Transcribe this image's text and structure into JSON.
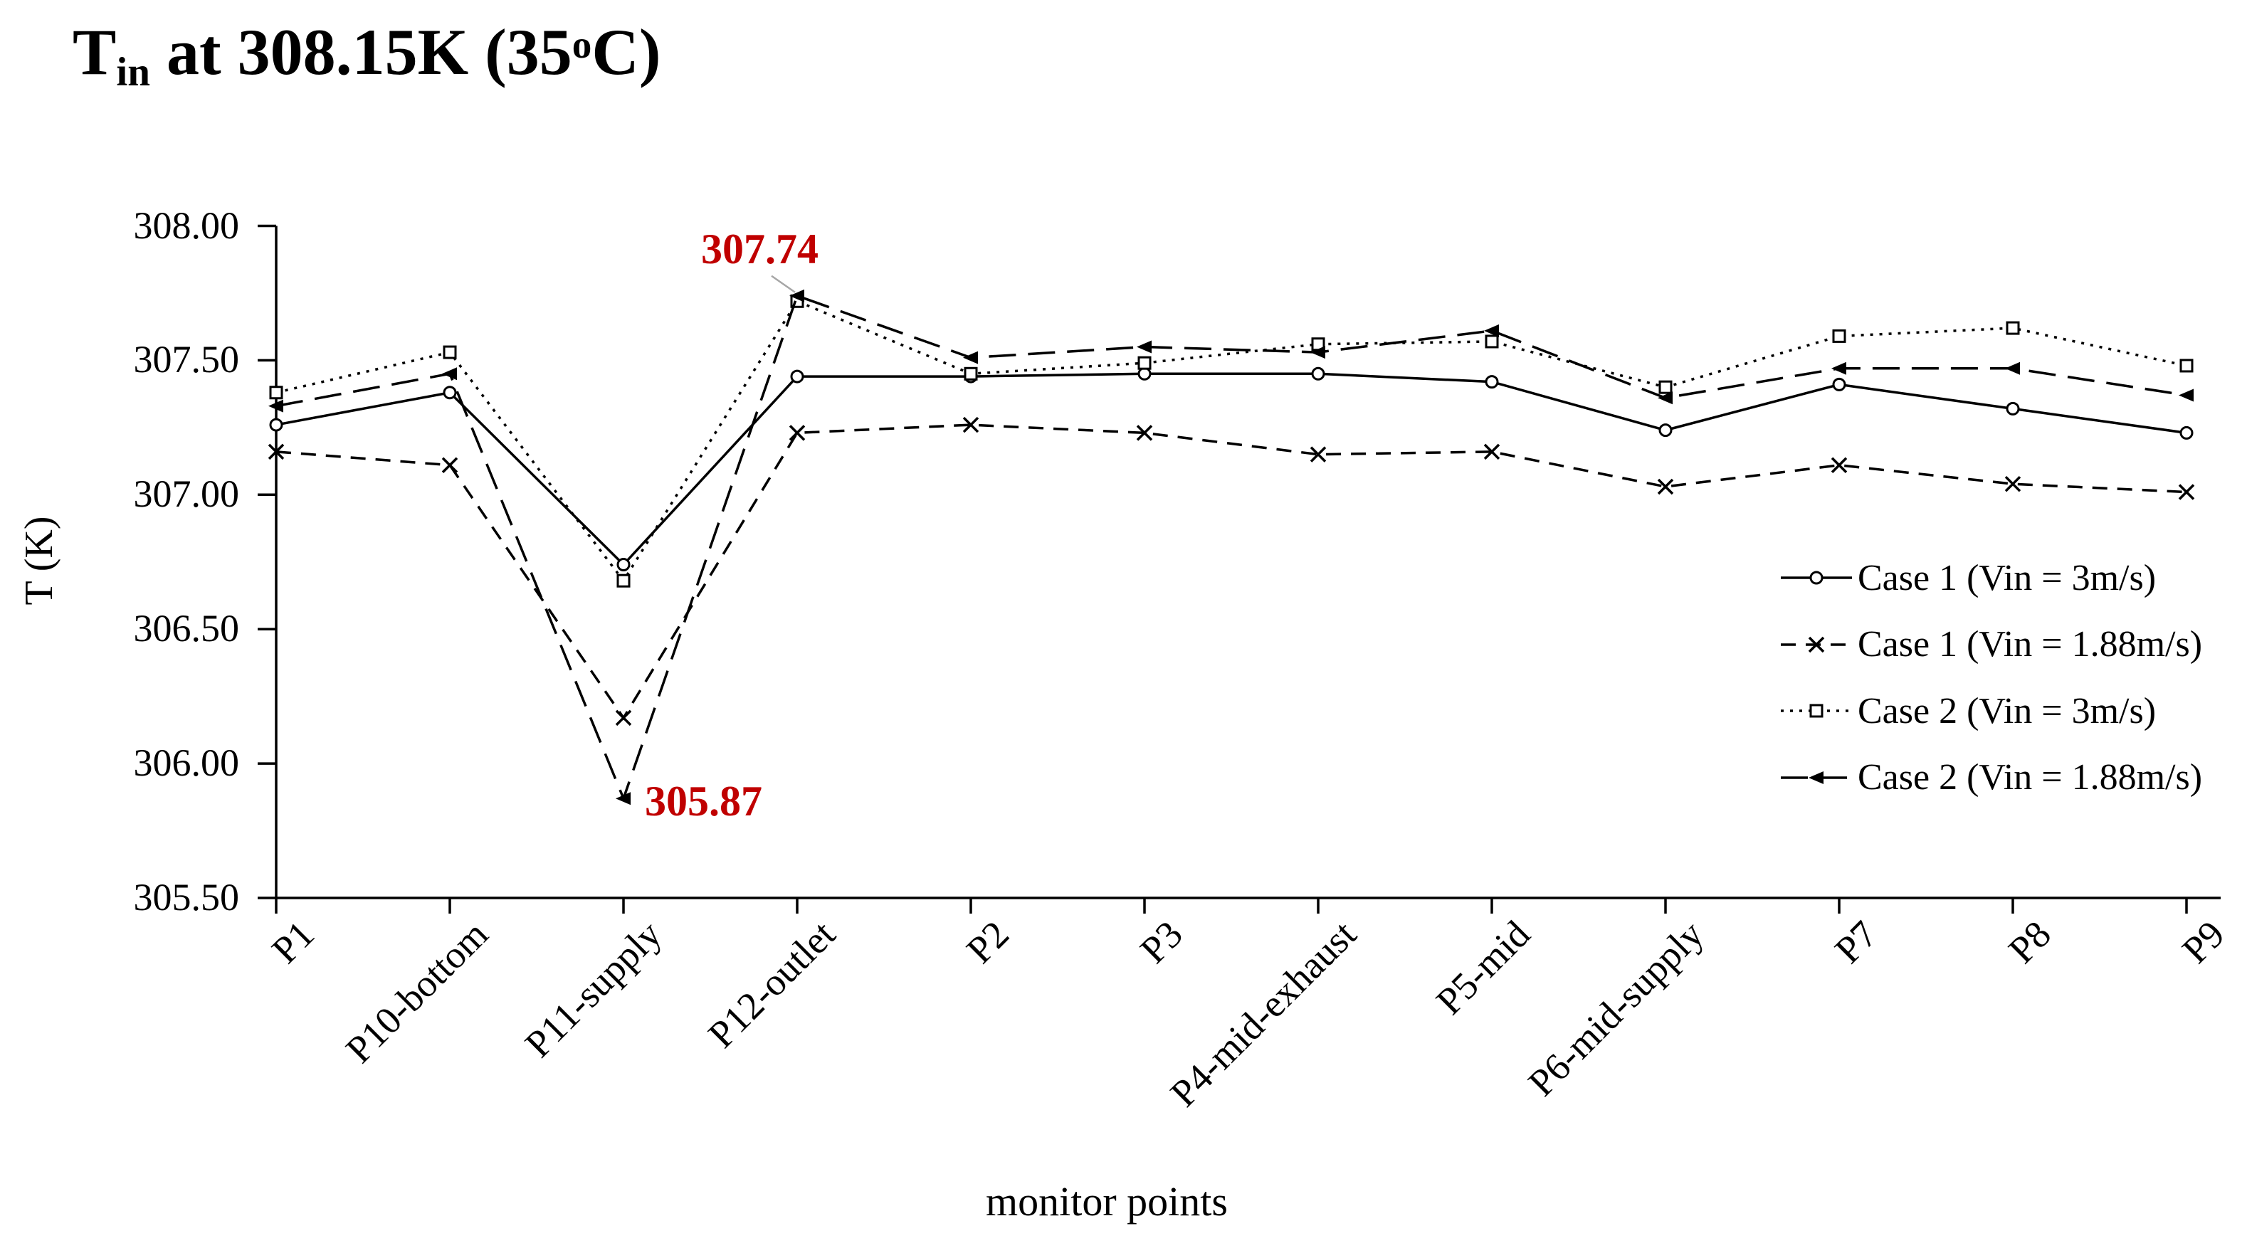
{
  "title": {
    "t": "T",
    "sub": "in",
    "mid": " at 308.15K (35",
    "sup": "o",
    "tail": "C)"
  },
  "axes": {
    "y_title": "T (K)",
    "x_title": "monitor points",
    "y_tick_labels": [
      "308.00",
      "307.50",
      "307.00",
      "306.50",
      "306.00",
      "305.50"
    ],
    "y_tick_values": [
      308.0,
      307.5,
      307.0,
      306.5,
      306.0,
      305.5
    ]
  },
  "annotation_color": "#C00000",
  "chart_data": {
    "type": "line",
    "title": "T_in at 308.15K (35°C)",
    "xlabel": "monitor points",
    "ylabel": "T (K)",
    "ylim": [
      305.5,
      308.0
    ],
    "ytick_step": 0.5,
    "grid": false,
    "legend_position": "right-middle",
    "line_color": "#000000",
    "categories": [
      "P1",
      "P10-bottom",
      "P11-supply",
      "P12-outlet",
      "P2",
      "P3",
      "P4-mid-exhaust",
      "P5-mid",
      "P6-mid-supply",
      "P7",
      "P8",
      "P9"
    ],
    "series": [
      {
        "name": "Case 1 (Vin = 3m/s)",
        "line": "solid",
        "marker": "circle-open",
        "color": "#000000",
        "values": [
          307.26,
          307.38,
          306.74,
          307.44,
          307.44,
          307.45,
          307.45,
          307.42,
          307.24,
          307.41,
          307.32,
          307.23
        ]
      },
      {
        "name": "Case 1 (Vin = 1.88m/s)",
        "line": "dashed",
        "marker": "x",
        "color": "#000000",
        "values": [
          307.16,
          307.11,
          306.17,
          307.23,
          307.26,
          307.23,
          307.15,
          307.16,
          307.03,
          307.11,
          307.04,
          307.01
        ]
      },
      {
        "name": "Case 2 (Vin = 3m/s)",
        "line": "dotted",
        "marker": "square-open",
        "color": "#000000",
        "values": [
          307.38,
          307.53,
          306.68,
          307.72,
          307.45,
          307.49,
          307.56,
          307.57,
          307.4,
          307.59,
          307.62,
          307.48
        ]
      },
      {
        "name": "Case 2 (Vin = 1.88m/s)",
        "line": "long-dash",
        "marker": "triangle-left-filled",
        "color": "#000000",
        "values": [
          307.33,
          307.45,
          305.87,
          307.74,
          307.51,
          307.55,
          307.53,
          307.61,
          307.36,
          307.47,
          307.47,
          307.37
        ]
      }
    ],
    "annotations": [
      {
        "text": "307.74",
        "series_index": 3,
        "category_index": 3,
        "placement": "above-left-with-leader"
      },
      {
        "text": "305.87",
        "series_index": 3,
        "category_index": 2,
        "placement": "right-of-point"
      }
    ]
  }
}
